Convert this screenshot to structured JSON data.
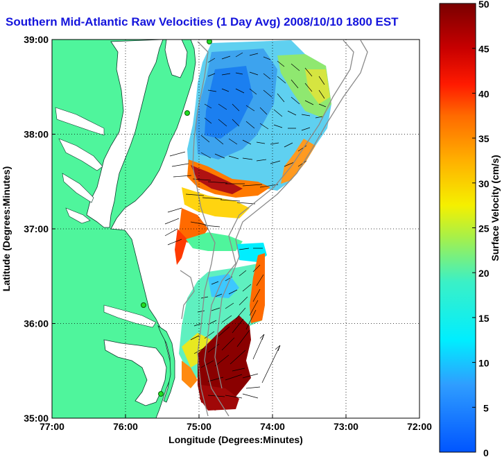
{
  "title": "Southern Mid-Atlantic Raw Velocities (1 Day Avg) 2008/10/10 1800 EST",
  "xlabel": "Longitude (Degrees:Minutes)",
  "ylabel": "Latitude (Degrees:Minutes)",
  "x_ticks": [
    "77:00",
    "76:00",
    "75:00",
    "74:00",
    "73:00",
    "72:00"
  ],
  "y_ticks": [
    "39:00",
    "38:00",
    "37:00",
    "36:00",
    "35:00"
  ],
  "colorbar": {
    "label": "Surface Velocity (cm/s)",
    "min": 0,
    "max": 50,
    "ticks": [
      "50",
      "45",
      "40",
      "35",
      "30",
      "25",
      "20",
      "15",
      "10",
      "5",
      "0"
    ]
  },
  "colors": {
    "land": "#4ff59c",
    "water": "#ffffff",
    "title": "#1414dc",
    "coast": "#0a3a2a",
    "station": "#22dd22"
  },
  "map_extent": {
    "lon": [
      -77,
      -72
    ],
    "lat": [
      35,
      39
    ]
  },
  "grid": "dotted"
}
